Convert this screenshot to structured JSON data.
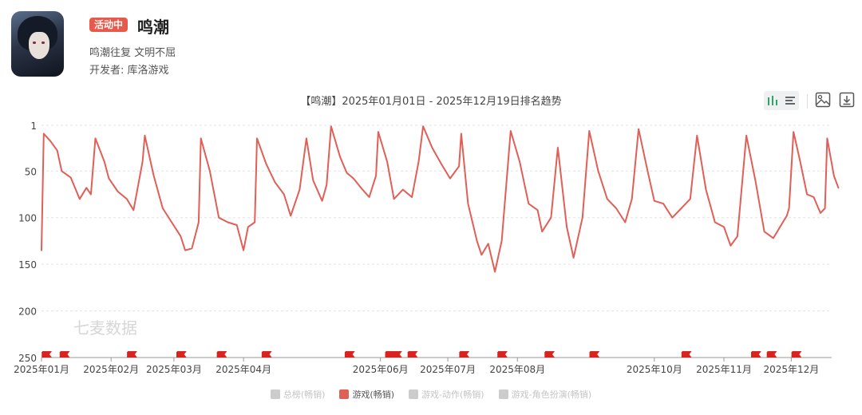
{
  "app": {
    "badge": "活动中",
    "title": "鸣潮",
    "subtitle": "鸣潮往复 文明不屈",
    "developer": "开发者: 库洛游戏"
  },
  "toolbar": {
    "chart_mode_icon": "bar-chart-icon",
    "list_mode_icon": "list-icon",
    "image_icon": "image-save-icon",
    "download_icon": "download-icon"
  },
  "watermark": "七麦数据",
  "colors": {
    "series": "#e05f56",
    "flag": "#d8231f",
    "badge": "#e8594a"
  },
  "chart_data": {
    "type": "line",
    "title": "【鸣潮】2025年01月01日 - 2025年12月19日排名趋势",
    "y_axis": {
      "inverted": true,
      "range": [
        1,
        250
      ],
      "ticks": [
        1,
        50,
        100,
        150,
        200,
        250
      ]
    },
    "x_axis": {
      "range": [
        "2025-01-01",
        "2025-12-19"
      ],
      "ticks": [
        {
          "date": "2025-01-01",
          "label": "2025年01月"
        },
        {
          "date": "2025-02-01",
          "label": "2025年02月"
        },
        {
          "date": "2025-03-01",
          "label": "2025年03月"
        },
        {
          "date": "2025-04-01",
          "label": "2025年04月"
        },
        {
          "date": "2025-06-01",
          "label": "2025年06月"
        },
        {
          "date": "2025-07-01",
          "label": "2025年07月"
        },
        {
          "date": "2025-08-01",
          "label": "2025年08月"
        },
        {
          "date": "2025-10-01",
          "label": "2025年10月"
        },
        {
          "date": "2025-11-01",
          "label": "2025年11月"
        },
        {
          "date": "2025-12-01",
          "label": "2025年12月"
        }
      ]
    },
    "grid": "horizontal-dashed",
    "legend": [
      {
        "name": "总榜(畅销)",
        "active": false
      },
      {
        "name": "游戏(畅销)",
        "active": true
      },
      {
        "name": "游戏-动作(畅销)",
        "active": false
      },
      {
        "name": "游戏-角色扮演(畅销)",
        "active": false
      }
    ],
    "series": [
      {
        "name": "游戏(畅销)",
        "points": [
          [
            "2025-01-01",
            135
          ],
          [
            "2025-01-02",
            10
          ],
          [
            "2025-01-05",
            18
          ],
          [
            "2025-01-08",
            28
          ],
          [
            "2025-01-10",
            50
          ],
          [
            "2025-01-14",
            57
          ],
          [
            "2025-01-18",
            80
          ],
          [
            "2025-01-21",
            68
          ],
          [
            "2025-01-23",
            75
          ],
          [
            "2025-01-25",
            15
          ],
          [
            "2025-01-29",
            40
          ],
          [
            "2025-01-31",
            58
          ],
          [
            "2025-02-04",
            72
          ],
          [
            "2025-02-08",
            80
          ],
          [
            "2025-02-11",
            92
          ],
          [
            "2025-02-15",
            40
          ],
          [
            "2025-02-16",
            12
          ],
          [
            "2025-02-20",
            55
          ],
          [
            "2025-02-24",
            90
          ],
          [
            "2025-02-28",
            105
          ],
          [
            "2025-03-04",
            120
          ],
          [
            "2025-03-06",
            135
          ],
          [
            "2025-03-09",
            133
          ],
          [
            "2025-03-12",
            105
          ],
          [
            "2025-03-13",
            15
          ],
          [
            "2025-03-17",
            50
          ],
          [
            "2025-03-21",
            100
          ],
          [
            "2025-03-25",
            105
          ],
          [
            "2025-03-29",
            108
          ],
          [
            "2025-04-01",
            135
          ],
          [
            "2025-04-03",
            110
          ],
          [
            "2025-04-06",
            105
          ],
          [
            "2025-04-07",
            15
          ],
          [
            "2025-04-11",
            42
          ],
          [
            "2025-04-15",
            62
          ],
          [
            "2025-04-19",
            75
          ],
          [
            "2025-04-22",
            98
          ],
          [
            "2025-04-26",
            70
          ],
          [
            "2025-04-29",
            15
          ],
          [
            "2025-05-02",
            60
          ],
          [
            "2025-05-06",
            82
          ],
          [
            "2025-05-08",
            65
          ],
          [
            "2025-05-10",
            2
          ],
          [
            "2025-05-14",
            35
          ],
          [
            "2025-05-17",
            52
          ],
          [
            "2025-05-20",
            58
          ],
          [
            "2025-05-24",
            70
          ],
          [
            "2025-05-27",
            78
          ],
          [
            "2025-05-30",
            55
          ],
          [
            "2025-05-31",
            8
          ],
          [
            "2025-06-04",
            40
          ],
          [
            "2025-06-07",
            80
          ],
          [
            "2025-06-11",
            70
          ],
          [
            "2025-06-15",
            78
          ],
          [
            "2025-06-18",
            40
          ],
          [
            "2025-06-20",
            2
          ],
          [
            "2025-06-24",
            25
          ],
          [
            "2025-06-28",
            42
          ],
          [
            "2025-07-02",
            58
          ],
          [
            "2025-07-06",
            45
          ],
          [
            "2025-07-07",
            10
          ],
          [
            "2025-07-10",
            85
          ],
          [
            "2025-07-14",
            125
          ],
          [
            "2025-07-16",
            140
          ],
          [
            "2025-07-19",
            128
          ],
          [
            "2025-07-22",
            158
          ],
          [
            "2025-07-25",
            125
          ],
          [
            "2025-07-29",
            7
          ],
          [
            "2025-08-02",
            40
          ],
          [
            "2025-08-06",
            85
          ],
          [
            "2025-08-10",
            92
          ],
          [
            "2025-08-12",
            115
          ],
          [
            "2025-08-16",
            100
          ],
          [
            "2025-08-19",
            25
          ],
          [
            "2025-08-23",
            110
          ],
          [
            "2025-08-26",
            143
          ],
          [
            "2025-08-30",
            100
          ],
          [
            "2025-09-02",
            7
          ],
          [
            "2025-09-06",
            50
          ],
          [
            "2025-09-10",
            80
          ],
          [
            "2025-09-14",
            90
          ],
          [
            "2025-09-18",
            105
          ],
          [
            "2025-09-21",
            80
          ],
          [
            "2025-09-24",
            5
          ],
          [
            "2025-09-28",
            50
          ],
          [
            "2025-10-01",
            82
          ],
          [
            "2025-10-05",
            85
          ],
          [
            "2025-10-09",
            100
          ],
          [
            "2025-10-13",
            90
          ],
          [
            "2025-10-17",
            80
          ],
          [
            "2025-10-20",
            12
          ],
          [
            "2025-10-24",
            70
          ],
          [
            "2025-10-28",
            105
          ],
          [
            "2025-11-01",
            110
          ],
          [
            "2025-11-04",
            130
          ],
          [
            "2025-11-07",
            120
          ],
          [
            "2025-11-11",
            12
          ],
          [
            "2025-11-15",
            60
          ],
          [
            "2025-11-19",
            115
          ],
          [
            "2025-11-23",
            122
          ],
          [
            "2025-11-26",
            110
          ],
          [
            "2025-11-29",
            98
          ],
          [
            "2025-11-30",
            90
          ],
          [
            "2025-12-02",
            8
          ],
          [
            "2025-12-05",
            40
          ],
          [
            "2025-12-08",
            75
          ],
          [
            "2025-12-11",
            78
          ],
          [
            "2025-12-14",
            95
          ],
          [
            "2025-12-16",
            90
          ],
          [
            "2025-12-17",
            15
          ],
          [
            "2025-12-20",
            55
          ],
          [
            "2025-12-22",
            68
          ]
        ]
      }
    ],
    "event_flags": [
      "2025-01-01",
      "2025-01-09",
      "2025-02-08",
      "2025-03-02",
      "2025-03-20",
      "2025-04-09",
      "2025-05-16",
      "2025-06-03",
      "2025-06-06",
      "2025-06-13",
      "2025-07-06",
      "2025-07-23",
      "2025-08-13",
      "2025-09-02",
      "2025-10-13",
      "2025-11-13",
      "2025-11-20",
      "2025-12-01"
    ]
  }
}
